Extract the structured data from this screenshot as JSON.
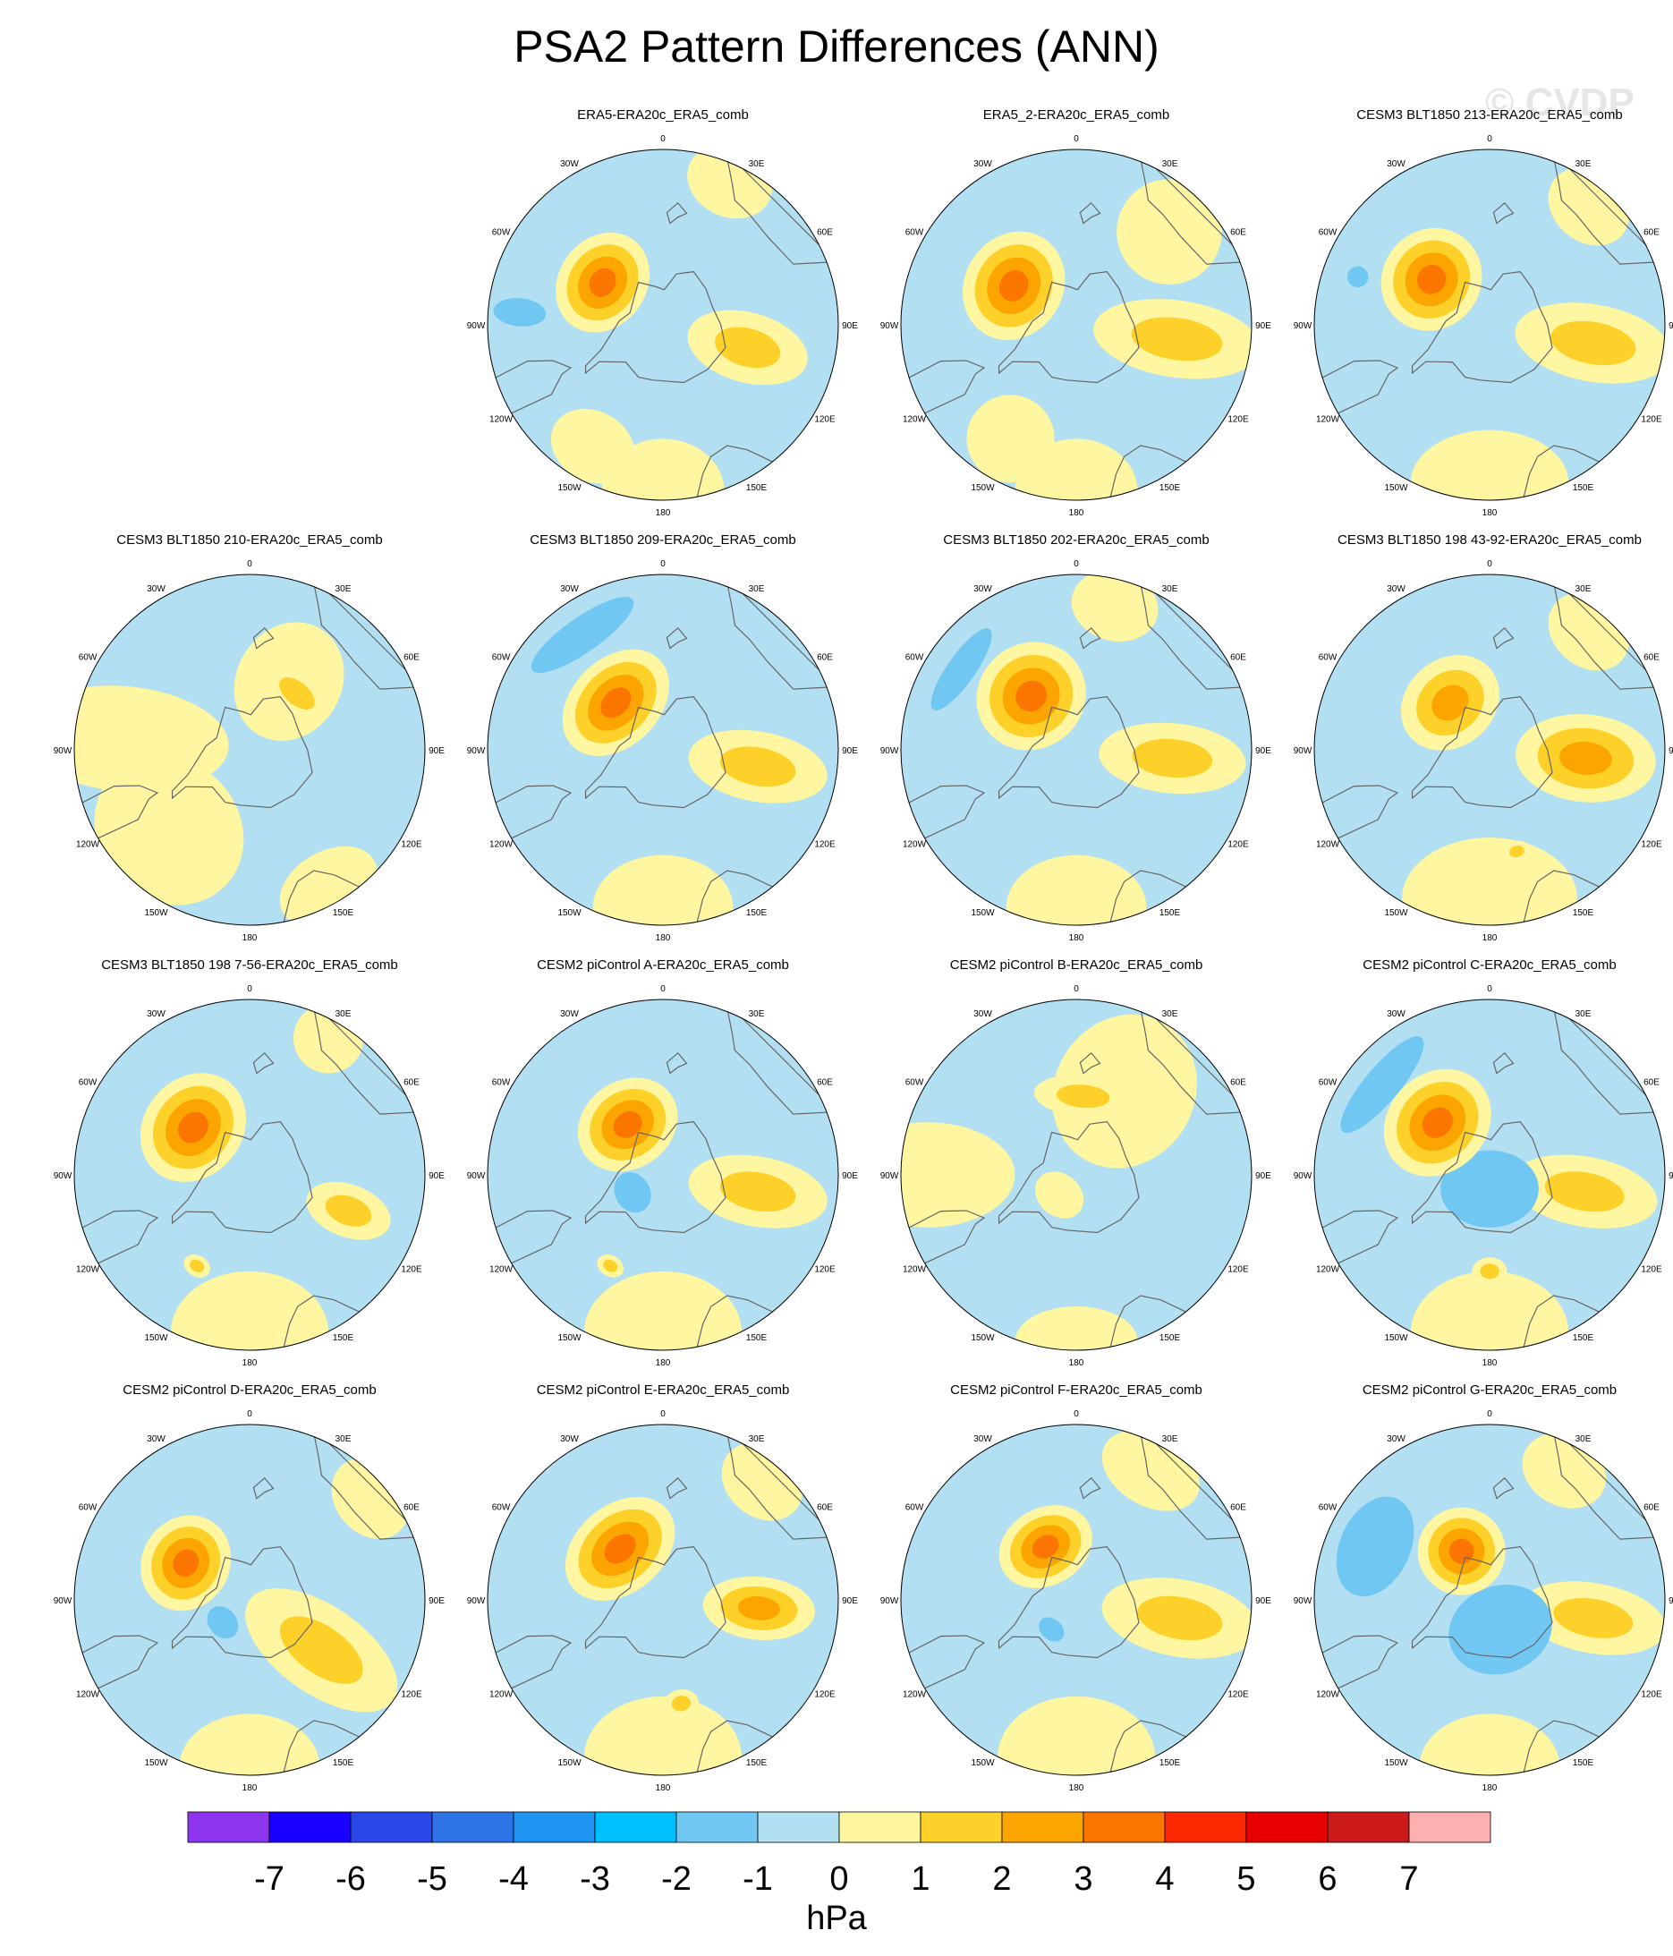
{
  "figure": {
    "title": "PSA2 Pattern Differences (ANN)",
    "watermark": "© CVDP",
    "units": "hPa"
  },
  "colors": {
    "map_background": "#b2dff2",
    "coastline": "#666666",
    "levels": [
      "#8e35ef",
      "#1a00ff",
      "#2a48e8",
      "#2f74e6",
      "#1e95f2",
      "#00bfff",
      "#70c8f2",
      "#b2dff2",
      "#fef6a0",
      "#fdd12a",
      "#fca500",
      "#fb7600",
      "#fb2800",
      "#e60000",
      "#cc1a1a",
      "#fdb0b0"
    ]
  },
  "colorbar": {
    "labels": [
      "-7",
      "-6",
      "-5",
      "-4",
      "-3",
      "-2",
      "-1",
      "0",
      "1",
      "2",
      "3",
      "4",
      "5",
      "6",
      "7"
    ]
  },
  "longitude_labels": [
    "0",
    "30E",
    "60E",
    "90E",
    "120E",
    "150E",
    "180",
    "150W",
    "120W",
    "90W",
    "60W",
    "30W"
  ],
  "panels": [
    {
      "title": "ERA5-ERA20c_ERA5_comb",
      "features": [
        {
          "lon": 0,
          "r": 0.95,
          "w": 0.35,
          "h": 0.3,
          "v": 0.5
        },
        {
          "lon": -30,
          "r": 0.8,
          "w": 0.25,
          "h": 0.2,
          "v": 0.5
        },
        {
          "lon": 75,
          "r": 0.5,
          "w": 0.2,
          "h": 0.35,
          "v": 1.6
        },
        {
          "lon": -125,
          "r": 0.42,
          "w": 0.3,
          "h": 0.25,
          "v": 3.2
        },
        {
          "lon": -95,
          "r": 0.82,
          "w": 0.08,
          "h": 0.15,
          "v": -1.5
        },
        {
          "lon": 155,
          "r": 0.9,
          "w": 0.25,
          "h": 0.2,
          "v": 0.5
        }
      ]
    },
    {
      "title": "ERA5_2-ERA20c_ERA5_comb",
      "features": [
        {
          "lon": 0,
          "r": 0.95,
          "w": 0.35,
          "h": 0.3,
          "v": 0.5
        },
        {
          "lon": -30,
          "r": 0.75,
          "w": 0.25,
          "h": 0.25,
          "v": 0.5
        },
        {
          "lon": 82,
          "r": 0.58,
          "w": 0.22,
          "h": 0.48,
          "v": 1.7
        },
        {
          "lon": -122,
          "r": 0.42,
          "w": 0.32,
          "h": 0.28,
          "v": 3.9
        },
        {
          "lon": 135,
          "r": 0.75,
          "w": 0.3,
          "h": 0.3,
          "v": 0.5
        }
      ]
    },
    {
      "title": "CESM3 BLT1850 213-ERA20c_ERA5_comb",
      "features": [
        {
          "lon": 0,
          "r": 0.9,
          "w": 0.45,
          "h": 0.3,
          "v": 0.5
        },
        {
          "lon": 80,
          "r": 0.6,
          "w": 0.22,
          "h": 0.45,
          "v": 1.6
        },
        {
          "lon": -128,
          "r": 0.42,
          "w": 0.3,
          "h": 0.28,
          "v": 3.9
        },
        {
          "lon": 140,
          "r": 0.88,
          "w": 0.25,
          "h": 0.2,
          "v": 0.5
        },
        {
          "lon": -110,
          "r": 0.8,
          "w": 0.06,
          "h": 0.06,
          "v": -1.5
        }
      ]
    },
    {
      "title": "CESM3 BLT1850 210-ERA20c_ERA5_comb",
      "features": [
        {
          "lon": -45,
          "r": 0.65,
          "w": 0.45,
          "h": 0.4,
          "v": 0.5
        },
        {
          "lon": -95,
          "r": 0.72,
          "w": 0.3,
          "h": 0.6,
          "v": 0.5
        },
        {
          "lon": 150,
          "r": 0.45,
          "w": 0.3,
          "h": 0.35,
          "v": 0.6
        },
        {
          "lon": 140,
          "r": 0.42,
          "w": 0.22,
          "h": 0.12,
          "v": 1.5
        },
        {
          "lon": 30,
          "r": 0.9,
          "w": 0.3,
          "h": 0.2,
          "v": 0.5
        }
      ]
    },
    {
      "title": "CESM3 BLT1850 209-ERA20c_ERA5_comb",
      "features": [
        {
          "lon": 0,
          "r": 0.9,
          "w": 0.4,
          "h": 0.3,
          "v": 0.5
        },
        {
          "lon": 80,
          "r": 0.55,
          "w": 0.2,
          "h": 0.4,
          "v": 1.6
        },
        {
          "lon": -135,
          "r": 0.38,
          "w": 0.35,
          "h": 0.25,
          "v": 3.9
        },
        {
          "lon": -145,
          "r": 0.8,
          "w": 0.35,
          "h": 0.1,
          "v": -1.6
        }
      ]
    },
    {
      "title": "CESM3 BLT1850 202-ERA20c_ERA5_comb",
      "features": [
        {
          "lon": 0,
          "r": 0.9,
          "w": 0.4,
          "h": 0.3,
          "v": 0.5
        },
        {
          "lon": 85,
          "r": 0.55,
          "w": 0.2,
          "h": 0.42,
          "v": 1.6
        },
        {
          "lon": -140,
          "r": 0.4,
          "w": 0.32,
          "h": 0.3,
          "v": 3.9
        },
        {
          "lon": -125,
          "r": 0.8,
          "w": 0.28,
          "h": 0.08,
          "v": -1.6
        },
        {
          "lon": 165,
          "r": 0.85,
          "w": 0.25,
          "h": 0.2,
          "v": 0.5
        }
      ]
    },
    {
      "title": "CESM3 BLT1850 198 43-92-ERA20c_ERA5_comb",
      "features": [
        {
          "lon": 0,
          "r": 0.85,
          "w": 0.5,
          "h": 0.35,
          "v": 0.5
        },
        {
          "lon": 15,
          "r": 0.6,
          "w": 0.08,
          "h": 0.06,
          "v": 1.5
        },
        {
          "lon": 85,
          "r": 0.55,
          "w": 0.25,
          "h": 0.4,
          "v": 2.8
        },
        {
          "lon": -140,
          "r": 0.35,
          "w": 0.3,
          "h": 0.25,
          "v": 2.6
        },
        {
          "lon": 140,
          "r": 0.88,
          "w": 0.25,
          "h": 0.2,
          "v": 0.5
        }
      ]
    },
    {
      "title": "CESM3 BLT1850 198 7-56-ERA20c_ERA5_comb",
      "features": [
        {
          "lon": 0,
          "r": 0.9,
          "w": 0.45,
          "h": 0.35,
          "v": 0.5
        },
        {
          "lon": -30,
          "r": 0.6,
          "w": 0.08,
          "h": 0.06,
          "v": 1.5
        },
        {
          "lon": 70,
          "r": 0.6,
          "w": 0.15,
          "h": 0.25,
          "v": 1.6
        },
        {
          "lon": -130,
          "r": 0.42,
          "w": 0.33,
          "h": 0.28,
          "v": 3.9
        },
        {
          "lon": 150,
          "r": 0.9,
          "w": 0.2,
          "h": 0.2,
          "v": 0.5
        }
      ]
    },
    {
      "title": "CESM2 piControl A-ERA20c_ERA5_comb",
      "features": [
        {
          "lon": 0,
          "r": 0.9,
          "w": 0.45,
          "h": 0.35,
          "v": 0.5
        },
        {
          "lon": -30,
          "r": 0.6,
          "w": 0.08,
          "h": 0.06,
          "v": 1.5
        },
        {
          "lon": 80,
          "r": 0.55,
          "w": 0.2,
          "h": 0.4,
          "v": 1.6
        },
        {
          "lon": -145,
          "r": 0.35,
          "w": 0.3,
          "h": 0.25,
          "v": 3.9
        },
        {
          "lon": -60,
          "r": 0.2,
          "w": 0.12,
          "h": 0.1,
          "v": -1.5
        }
      ]
    },
    {
      "title": "CESM2 piControl B-ERA20c_ERA5_comb",
      "features": [
        {
          "lon": -90,
          "r": 0.85,
          "w": 0.3,
          "h": 0.5,
          "v": 0.5
        },
        {
          "lon": 0,
          "r": 0.95,
          "w": 0.35,
          "h": 0.2,
          "v": 0.5
        },
        {
          "lon": 150,
          "r": 0.55,
          "w": 0.4,
          "h": 0.45,
          "v": 0.5
        },
        {
          "lon": 175,
          "r": 0.45,
          "w": 0.28,
          "h": 0.12,
          "v": 1.5
        },
        {
          "lon": -40,
          "r": 0.15,
          "w": 0.15,
          "h": 0.12,
          "v": 0.5
        }
      ]
    },
    {
      "title": "CESM2 piControl C-ERA20c_ERA5_comb",
      "features": [
        {
          "lon": 0,
          "r": 0.9,
          "w": 0.45,
          "h": 0.35,
          "v": 0.5
        },
        {
          "lon": 0,
          "r": 0.55,
          "w": 0.1,
          "h": 0.08,
          "v": 1.5
        },
        {
          "lon": 80,
          "r": 0.55,
          "w": 0.2,
          "h": 0.42,
          "v": 1.6
        },
        {
          "lon": 0,
          "r": 0.08,
          "w": 0.28,
          "h": 0.22,
          "v": -1.6
        },
        {
          "lon": -135,
          "r": 0.42,
          "w": 0.33,
          "h": 0.28,
          "v": 3.8
        },
        {
          "lon": -130,
          "r": 0.8,
          "w": 0.35,
          "h": 0.1,
          "v": -1.6
        }
      ]
    },
    {
      "title": "CESM2 piControl D-ERA20c_ERA5_comb",
      "features": [
        {
          "lon": 0,
          "r": 0.95,
          "w": 0.4,
          "h": 0.3,
          "v": 0.5
        },
        {
          "lon": 55,
          "r": 0.5,
          "w": 0.25,
          "h": 0.5,
          "v": 1.6
        },
        {
          "lon": -120,
          "r": 0.42,
          "w": 0.28,
          "h": 0.25,
          "v": 3.2
        },
        {
          "lon": -50,
          "r": 0.2,
          "w": 0.1,
          "h": 0.08,
          "v": -1.5
        },
        {
          "lon": 130,
          "r": 0.9,
          "w": 0.25,
          "h": 0.2,
          "v": 0.5
        }
      ]
    },
    {
      "title": "CESM2 piControl E-ERA20c_ERA5_comb",
      "features": [
        {
          "lon": 0,
          "r": 0.9,
          "w": 0.45,
          "h": 0.35,
          "v": 0.5
        },
        {
          "lon": 10,
          "r": 0.6,
          "w": 0.1,
          "h": 0.08,
          "v": 1.5
        },
        {
          "lon": 85,
          "r": 0.55,
          "w": 0.18,
          "h": 0.32,
          "v": 2.8
        },
        {
          "lon": -140,
          "r": 0.38,
          "w": 0.35,
          "h": 0.25,
          "v": 3.9
        },
        {
          "lon": 140,
          "r": 0.88,
          "w": 0.25,
          "h": 0.2,
          "v": 0.5
        }
      ]
    },
    {
      "title": "CESM2 piControl F-ERA20c_ERA5_comb",
      "features": [
        {
          "lon": 0,
          "r": 0.9,
          "w": 0.45,
          "h": 0.35,
          "v": 0.5
        },
        {
          "lon": 80,
          "r": 0.6,
          "w": 0.22,
          "h": 0.45,
          "v": 1.6
        },
        {
          "lon": -150,
          "r": 0.35,
          "w": 0.28,
          "h": 0.22,
          "v": 3.2
        },
        {
          "lon": -40,
          "r": 0.22,
          "w": 0.08,
          "h": 0.06,
          "v": -1.5
        },
        {
          "lon": 150,
          "r": 0.85,
          "w": 0.3,
          "h": 0.2,
          "v": 0.5
        }
      ]
    },
    {
      "title": "CESM2 piControl G-ERA20c_ERA5_comb",
      "features": [
        {
          "lon": 0,
          "r": 0.95,
          "w": 0.4,
          "h": 0.3,
          "v": 0.5
        },
        {
          "lon": 80,
          "r": 0.6,
          "w": 0.2,
          "h": 0.42,
          "v": 1.6
        },
        {
          "lon": 20,
          "r": 0.18,
          "w": 0.3,
          "h": 0.25,
          "v": -1.6
        },
        {
          "lon": -150,
          "r": 0.32,
          "w": 0.25,
          "h": 0.25,
          "v": 3.9
        },
        {
          "lon": -115,
          "r": 0.72,
          "w": 0.3,
          "h": 0.2,
          "v": -1.6
        },
        {
          "lon": 150,
          "r": 0.85,
          "w": 0.25,
          "h": 0.2,
          "v": 0.5
        }
      ]
    }
  ]
}
